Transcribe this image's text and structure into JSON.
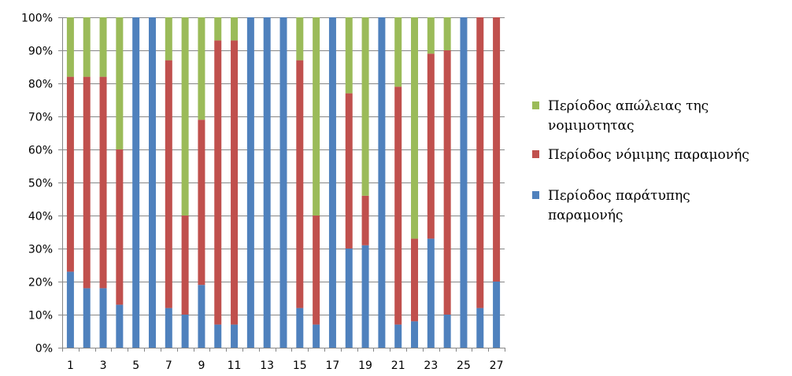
{
  "chart_data": {
    "type": "bar",
    "stacked": true,
    "percent_stacked": true,
    "categories": [
      "1",
      "2",
      "3",
      "4",
      "5",
      "6",
      "7",
      "8",
      "9",
      "10",
      "11",
      "12",
      "13",
      "14",
      "15",
      "16",
      "17",
      "18",
      "19",
      "20",
      "21",
      "22",
      "23",
      "24",
      "25",
      "26",
      "27"
    ],
    "x_tick_labels": [
      "1",
      "3",
      "5",
      "7",
      "9",
      "11",
      "13",
      "15",
      "17",
      "19",
      "21",
      "23",
      "25",
      "27"
    ],
    "y_tick_labels": [
      "0%",
      "10%",
      "20%",
      "30%",
      "40%",
      "50%",
      "60%",
      "70%",
      "80%",
      "90%",
      "100%"
    ],
    "ylim": [
      0,
      100
    ],
    "grid": "horizontal",
    "legend_position": "right",
    "series": [
      {
        "name": "Περίοδος παράτυπης παραμονής",
        "color": "#4F81BD",
        "values": [
          23,
          18,
          18,
          13,
          100,
          100,
          12,
          10,
          19,
          7,
          7,
          100,
          100,
          100,
          12,
          7,
          100,
          30,
          31,
          100,
          7,
          8,
          33,
          10,
          100,
          12,
          20
        ]
      },
      {
        "name": "Περίοδος νόμιμης παραμονής",
        "color": "#C0504D",
        "values": [
          59,
          64,
          64,
          47,
          0,
          0,
          75,
          30,
          50,
          86,
          86,
          0,
          0,
          0,
          75,
          33,
          0,
          47,
          15,
          0,
          72,
          25,
          56,
          80,
          0,
          88,
          80
        ]
      },
      {
        "name": "Περίοδος απώλειας της νομιμοτητας",
        "color": "#9BBB59",
        "values": [
          18,
          18,
          18,
          40,
          0,
          0,
          13,
          60,
          31,
          7,
          7,
          0,
          0,
          0,
          13,
          60,
          0,
          23,
          54,
          0,
          21,
          67,
          11,
          10,
          0,
          0,
          0
        ]
      }
    ],
    "legend": {
      "entries": [
        {
          "lines": [
            "Περίοδος απώλειας της",
            "νομιμοτητας"
          ],
          "color": "#9BBB59"
        },
        {
          "lines": [
            "Περίοδος νόμιμης παραμονής"
          ],
          "color": "#C0504D"
        },
        {
          "lines": [
            "Περίοδος παράτυπης",
            "παραμονής"
          ],
          "color": "#4F81BD"
        }
      ]
    }
  }
}
